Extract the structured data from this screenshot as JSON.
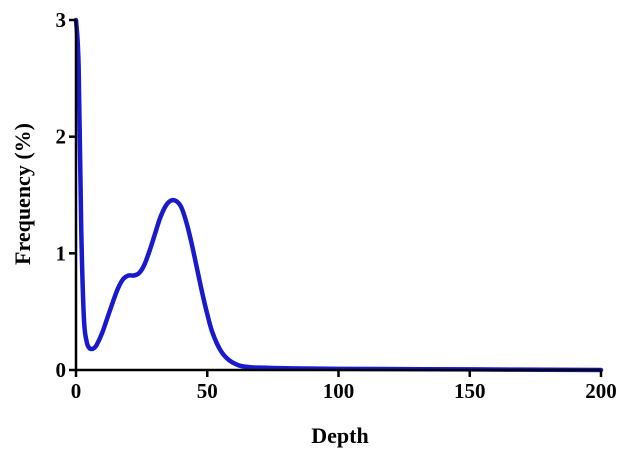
{
  "chart_data": {
    "type": "line",
    "title": "",
    "xlabel": "Depth",
    "ylabel": "Frequency (%)",
    "xlim": [
      0,
      200
    ],
    "ylim": [
      0,
      3
    ],
    "x_ticks": [
      0,
      50,
      100,
      150,
      200
    ],
    "y_ticks": [
      0,
      1,
      2,
      3
    ],
    "x_tick_labels": [
      "0",
      "50",
      "100",
      "150",
      "200"
    ],
    "y_tick_labels": [
      "0",
      "1",
      "2",
      "3"
    ],
    "grid": false,
    "legend": "none",
    "series": [
      {
        "color": "#1a1acd",
        "x": [
          0,
          1,
          2,
          3,
          4,
          5,
          6,
          7,
          8,
          10,
          12,
          14,
          16,
          18,
          20,
          22,
          24,
          26,
          28,
          30,
          32,
          34,
          36,
          38,
          40,
          42,
          44,
          46,
          48,
          50,
          52,
          55,
          58,
          62,
          66,
          70,
          80,
          100,
          150,
          200
        ],
        "y": [
          3.0,
          2.6,
          1.2,
          0.45,
          0.25,
          0.19,
          0.18,
          0.19,
          0.22,
          0.32,
          0.45,
          0.58,
          0.7,
          0.78,
          0.81,
          0.81,
          0.83,
          0.9,
          1.02,
          1.16,
          1.3,
          1.4,
          1.45,
          1.45,
          1.4,
          1.27,
          1.09,
          0.88,
          0.67,
          0.48,
          0.32,
          0.17,
          0.09,
          0.04,
          0.025,
          0.02,
          0.015,
          0.01,
          0.005,
          0.0
        ]
      }
    ]
  }
}
